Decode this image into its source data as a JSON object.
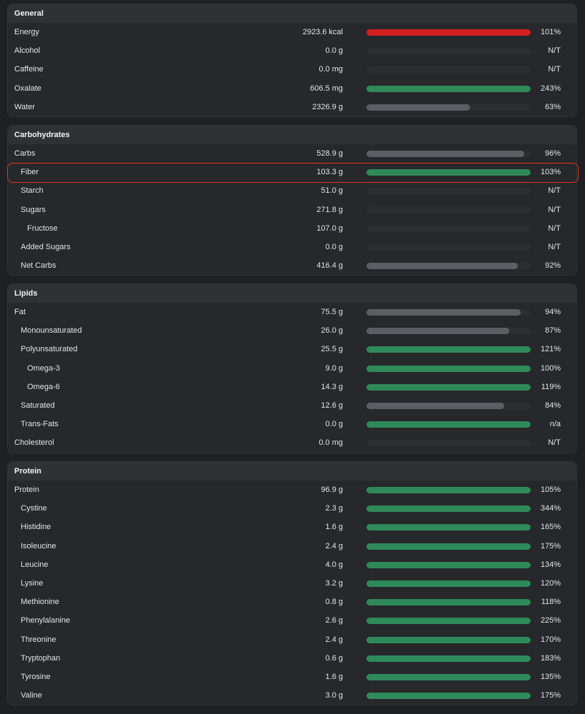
{
  "colors": {
    "over": "#d21f1f",
    "good": "#2f8a5a",
    "partial": "#5b5e63",
    "track": "#2c2e31"
  },
  "sections": [
    {
      "title": "General",
      "rows": [
        {
          "name": "Energy",
          "amount": "2923.6 kcal",
          "pct": "101%",
          "fill": 1.0,
          "status": "over",
          "indent": 0
        },
        {
          "name": "Alcohol",
          "amount": "0.0 g",
          "pct": "N/T",
          "fill": 0,
          "status": "none",
          "indent": 0
        },
        {
          "name": "Caffeine",
          "amount": "0.0 mg",
          "pct": "N/T",
          "fill": 0,
          "status": "none",
          "indent": 0
        },
        {
          "name": "Oxalate",
          "amount": "606.5 mg",
          "pct": "243%",
          "fill": 1.0,
          "status": "good",
          "indent": 0
        },
        {
          "name": "Water",
          "amount": "2326.9 g",
          "pct": "63%",
          "fill": 0.63,
          "status": "partial",
          "indent": 0
        }
      ]
    },
    {
      "title": "Carbohydrates",
      "rows": [
        {
          "name": "Carbs",
          "amount": "528.9 g",
          "pct": "96%",
          "fill": 0.96,
          "status": "partial",
          "indent": 0
        },
        {
          "name": "Fiber",
          "amount": "103.3 g",
          "pct": "103%",
          "fill": 1.0,
          "status": "good",
          "indent": 1,
          "highlight": true
        },
        {
          "name": "Starch",
          "amount": "51.0 g",
          "pct": "N/T",
          "fill": 0,
          "status": "none",
          "indent": 1
        },
        {
          "name": "Sugars",
          "amount": "271.8 g",
          "pct": "N/T",
          "fill": 0,
          "status": "none",
          "indent": 1
        },
        {
          "name": "Fructose",
          "amount": "107.0 g",
          "pct": "N/T",
          "fill": 0,
          "status": "none",
          "indent": 2
        },
        {
          "name": "Added Sugars",
          "amount": "0.0 g",
          "pct": "N/T",
          "fill": 0,
          "status": "none",
          "indent": 1
        },
        {
          "name": "Net Carbs",
          "amount": "416.4 g",
          "pct": "92%",
          "fill": 0.92,
          "status": "partial",
          "indent": 1
        }
      ]
    },
    {
      "title": "Lipids",
      "rows": [
        {
          "name": "Fat",
          "amount": "75.5 g",
          "pct": "94%",
          "fill": 0.94,
          "status": "partial",
          "indent": 0
        },
        {
          "name": "Monounsaturated",
          "amount": "26.0 g",
          "pct": "87%",
          "fill": 0.87,
          "status": "partial",
          "indent": 1
        },
        {
          "name": "Polyunsaturated",
          "amount": "25.5 g",
          "pct": "121%",
          "fill": 1.0,
          "status": "good",
          "indent": 1
        },
        {
          "name": "Omega-3",
          "amount": "9.0 g",
          "pct": "100%",
          "fill": 1.0,
          "status": "good",
          "indent": 2
        },
        {
          "name": "Omega-6",
          "amount": "14.3 g",
          "pct": "119%",
          "fill": 1.0,
          "status": "good",
          "indent": 2
        },
        {
          "name": "Saturated",
          "amount": "12.6 g",
          "pct": "84%",
          "fill": 0.84,
          "status": "partial",
          "indent": 1
        },
        {
          "name": "Trans-Fats",
          "amount": "0.0 g",
          "pct": "n/a",
          "fill": 1.0,
          "status": "good",
          "indent": 1
        },
        {
          "name": "Cholesterol",
          "amount": "0.0 mg",
          "pct": "N/T",
          "fill": 0,
          "status": "none",
          "indent": 0
        }
      ]
    },
    {
      "title": "Protein",
      "rows": [
        {
          "name": "Protein",
          "amount": "96.9 g",
          "pct": "105%",
          "fill": 1.0,
          "status": "good",
          "indent": 0
        },
        {
          "name": "Cystine",
          "amount": "2.3 g",
          "pct": "344%",
          "fill": 1.0,
          "status": "good",
          "indent": 1
        },
        {
          "name": "Histidine",
          "amount": "1.6 g",
          "pct": "165%",
          "fill": 1.0,
          "status": "good",
          "indent": 1
        },
        {
          "name": "Isoleucine",
          "amount": "2.4 g",
          "pct": "175%",
          "fill": 1.0,
          "status": "good",
          "indent": 1
        },
        {
          "name": "Leucine",
          "amount": "4.0 g",
          "pct": "134%",
          "fill": 1.0,
          "status": "good",
          "indent": 1
        },
        {
          "name": "Lysine",
          "amount": "3.2 g",
          "pct": "120%",
          "fill": 1.0,
          "status": "good",
          "indent": 1
        },
        {
          "name": "Methionine",
          "amount": "0.8 g",
          "pct": "118%",
          "fill": 1.0,
          "status": "good",
          "indent": 1
        },
        {
          "name": "Phenylalanine",
          "amount": "2.6 g",
          "pct": "225%",
          "fill": 1.0,
          "status": "good",
          "indent": 1
        },
        {
          "name": "Threonine",
          "amount": "2.4 g",
          "pct": "170%",
          "fill": 1.0,
          "status": "good",
          "indent": 1
        },
        {
          "name": "Tryptophan",
          "amount": "0.6 g",
          "pct": "183%",
          "fill": 1.0,
          "status": "good",
          "indent": 1
        },
        {
          "name": "Tyrosine",
          "amount": "1.6 g",
          "pct": "135%",
          "fill": 1.0,
          "status": "good",
          "indent": 1
        },
        {
          "name": "Valine",
          "amount": "3.0 g",
          "pct": "175%",
          "fill": 1.0,
          "status": "good",
          "indent": 1
        }
      ]
    }
  ]
}
